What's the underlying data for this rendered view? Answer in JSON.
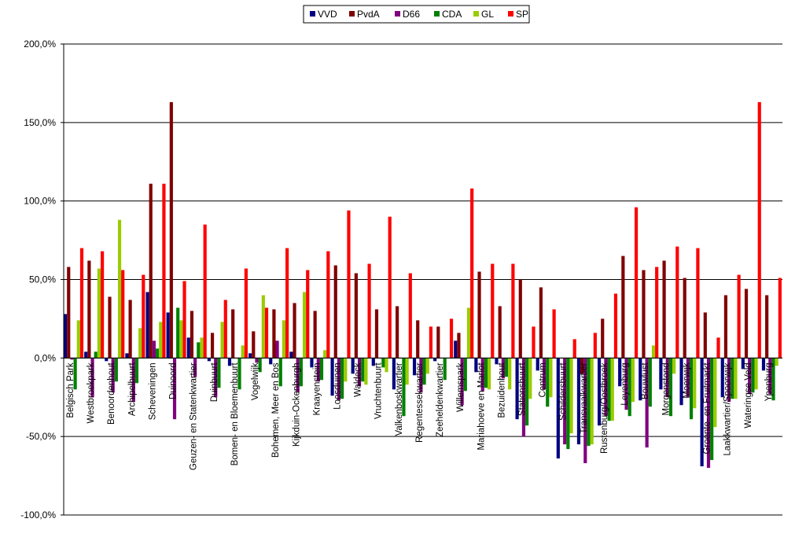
{
  "chart_data": {
    "type": "bar",
    "title": "",
    "xlabel": "",
    "ylabel": "",
    "ylim": [
      -100,
      200
    ],
    "yticks": [
      -100,
      -50,
      0,
      50,
      100,
      150,
      200
    ],
    "ytick_labels": [
      "-100,0%",
      "-50,0%",
      "0,0%",
      "50,0%",
      "100,0%",
      "150,0%",
      "200,0%"
    ],
    "grid": true,
    "legend_position": "top-center",
    "categories": [
      "Belgisch Park",
      "Westbroekpark",
      "Benoordenhout",
      "Archipelbuurt",
      "Scheveningen",
      "Duinoord",
      "Geuzen- en Statenkwartier",
      "Duinbuurt",
      "Bomen- en Bloemenbuurt",
      "Vogelwijk",
      "Bohemen, Meer en Bos",
      "Kijkduin-Ockenburgh",
      "Kraayenstein",
      "Loosduinen",
      "Waldeck",
      "Vruchtenbuurt",
      "Valkenboskwartier",
      "Regentessekwartier",
      "Zeeheldenkwartier",
      "Willemspark",
      "Mariahoeve en Marlot",
      "Bezuidenhout",
      "Stationsbuurt",
      "Centrum",
      "Schildersbuurt",
      "Transvaalkwartier",
      "Rustenburg/Oostbroek",
      "Leyenburg",
      "Bouwlust",
      "Morgenstond",
      "Moerwijk",
      "Groente- en Fruitmarkt",
      "Laakkwartier/Spoorwijk",
      "Wateringse Veld",
      "Ypenburg"
    ],
    "series": [
      {
        "name": "VVD",
        "color": "#000080",
        "values": [
          28,
          4,
          -2,
          3,
          42,
          29,
          13,
          -2,
          -5,
          3,
          -4,
          4,
          -6,
          -24,
          -10,
          -5,
          -20,
          -11,
          -2,
          11,
          -9,
          -4,
          -39,
          -8,
          -64,
          -55,
          -43,
          -18,
          -27,
          -20,
          -30,
          -69,
          -25,
          -7,
          -8
        ]
      },
      {
        "name": "PvdA",
        "color": "#800000",
        "values": [
          58,
          62,
          39,
          37,
          111,
          163,
          30,
          16,
          31,
          17,
          31,
          35,
          30,
          59,
          54,
          31,
          33,
          24,
          20,
          16,
          55,
          33,
          50,
          45,
          0,
          -10,
          25,
          65,
          56,
          62,
          51,
          29,
          40,
          44,
          40
        ]
      },
      {
        "name": "D66",
        "color": "#800080",
        "values": [
          -1,
          -25,
          -22,
          -28,
          11,
          -39,
          -12,
          -25,
          0,
          -3,
          11,
          -22,
          -15,
          -27,
          -18,
          0,
          0,
          -22,
          0,
          -30,
          -21,
          -13,
          -50,
          -20,
          -55,
          -67,
          -37,
          -33,
          -57,
          -25,
          -25,
          -70,
          -28,
          -23,
          -23
        ]
      },
      {
        "name": "CDA",
        "color": "#008000",
        "values": [
          -20,
          4,
          -15,
          -16,
          6,
          32,
          10,
          -19,
          -20,
          -9,
          -18,
          -18,
          -14,
          -26,
          -15,
          -6,
          -37,
          -17,
          -14,
          -21,
          -19,
          -12,
          -43,
          -31,
          -58,
          -56,
          -40,
          -37,
          -31,
          -37,
          -39,
          -65,
          -26,
          -22,
          -27
        ]
      },
      {
        "name": "GL",
        "color": "#99CC00",
        "values": [
          24,
          57,
          88,
          19,
          23,
          24,
          13,
          23,
          8,
          40,
          24,
          42,
          5,
          -15,
          -17,
          -9,
          -17,
          -10,
          0,
          32,
          -20,
          -20,
          -26,
          -25,
          -48,
          -55,
          -40,
          -28,
          8,
          -10,
          -32,
          -44,
          -26,
          -20,
          -5
        ]
      },
      {
        "name": "SP",
        "color": "#FF0000",
        "values": [
          70,
          68,
          56,
          53,
          111,
          49,
          85,
          37,
          57,
          32,
          70,
          56,
          68,
          94,
          60,
          90,
          54,
          20,
          25,
          108,
          60,
          60,
          20,
          31,
          12,
          16,
          41,
          96,
          58,
          71,
          70,
          13,
          53,
          163,
          51
        ]
      }
    ]
  }
}
